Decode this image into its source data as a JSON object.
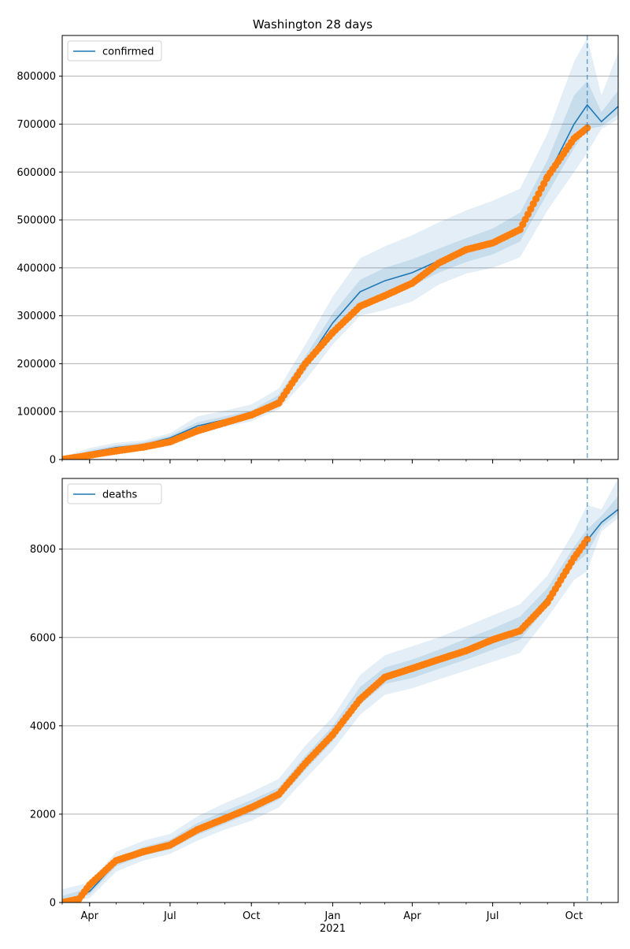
{
  "figure": {
    "title": "Washington 28 days"
  },
  "chart_data": [
    {
      "type": "line",
      "title": "Washington 28 days",
      "xlabel": "",
      "ylabel": "",
      "x_range": [
        "2020-03-01",
        "2021-11-20"
      ],
      "ylim": [
        0,
        885000
      ],
      "yticks": [
        0,
        100000,
        200000,
        300000,
        400000,
        500000,
        600000,
        700000,
        800000
      ],
      "ytick_labels": [
        "0",
        "100000",
        "200000",
        "300000",
        "400000",
        "500000",
        "600000",
        "700000",
        "800000"
      ],
      "grid": "horizontal",
      "legend_position": "top-left",
      "forecast_start": "2021-10-16",
      "series": [
        {
          "name": "confirmed",
          "kind": "fit-line",
          "color": "#1f77b4",
          "x": [
            "2020-03-01",
            "2020-04-01",
            "2020-05-01",
            "2020-06-01",
            "2020-07-01",
            "2020-08-01",
            "2020-09-01",
            "2020-10-01",
            "2020-11-01",
            "2020-12-01",
            "2021-01-01",
            "2021-02-01",
            "2021-03-01",
            "2021-04-01",
            "2021-05-01",
            "2021-06-01",
            "2021-07-01",
            "2021-08-01",
            "2021-09-01",
            "2021-10-01",
            "2021-10-16",
            "2021-11-01",
            "2021-11-20"
          ],
          "y": [
            0,
            15000,
            25000,
            31000,
            45000,
            70000,
            83000,
            95000,
            125000,
            200000,
            285000,
            350000,
            373000,
            390000,
            415000,
            437000,
            455000,
            485000,
            590000,
            700000,
            740000,
            705000,
            737000
          ]
        },
        {
          "name": "",
          "kind": "observed-points",
          "color": "#ff7f0e",
          "x": [
            "2020-03-01",
            "2020-04-01",
            "2020-05-01",
            "2020-06-01",
            "2020-07-01",
            "2020-08-01",
            "2020-09-01",
            "2020-10-01",
            "2020-11-01",
            "2020-12-01",
            "2021-01-01",
            "2021-02-01",
            "2021-03-01",
            "2021-04-01",
            "2021-05-01",
            "2021-06-01",
            "2021-07-01",
            "2021-08-01",
            "2021-09-01",
            "2021-10-01",
            "2021-10-16"
          ],
          "y": [
            0,
            9000,
            18000,
            26000,
            37000,
            60000,
            77000,
            93000,
            118000,
            200000,
            265000,
            320000,
            342000,
            368000,
            410000,
            438000,
            452000,
            480000,
            590000,
            670000,
            692000
          ]
        }
      ],
      "band": {
        "color": "#1f77b4",
        "x": [
          "2020-03-01",
          "2020-04-01",
          "2020-05-01",
          "2020-06-01",
          "2020-07-01",
          "2020-08-01",
          "2020-09-01",
          "2020-10-01",
          "2020-11-01",
          "2020-12-01",
          "2021-01-01",
          "2021-02-01",
          "2021-03-01",
          "2021-04-01",
          "2021-05-01",
          "2021-06-01",
          "2021-07-01",
          "2021-08-01",
          "2021-09-01",
          "2021-10-01",
          "2021-10-16",
          "2021-11-01",
          "2021-11-20"
        ],
        "outer_low": [
          0,
          4000,
          12000,
          20000,
          32000,
          52000,
          68000,
          80000,
          105000,
          165000,
          240000,
          300000,
          312000,
          330000,
          365000,
          388000,
          400000,
          422000,
          520000,
          600000,
          640000,
          690000,
          710000
        ],
        "outer_high": [
          5000,
          24000,
          35000,
          40000,
          55000,
          90000,
          102000,
          115000,
          148000,
          240000,
          340000,
          420000,
          445000,
          468000,
          495000,
          520000,
          540000,
          565000,
          680000,
          830000,
          880000,
          760000,
          850000
        ],
        "inner_low": [
          0,
          10000,
          18000,
          25000,
          40000,
          62000,
          76000,
          88000,
          115000,
          185000,
          265000,
          325000,
          345000,
          362000,
          390000,
          412000,
          428000,
          455000,
          555000,
          650000,
          690000,
          695000,
          720000
        ],
        "inner_high": [
          2000,
          19000,
          30000,
          36000,
          50000,
          78000,
          90000,
          102000,
          135000,
          215000,
          305000,
          375000,
          400000,
          418000,
          440000,
          462000,
          482000,
          515000,
          625000,
          760000,
          790000,
          725000,
          770000
        ]
      }
    },
    {
      "type": "line",
      "title": "",
      "xlabel": "",
      "ylabel": "",
      "x_range": [
        "2020-03-01",
        "2021-11-20"
      ],
      "ylim": [
        0,
        9600
      ],
      "yticks": [
        0,
        2000,
        4000,
        6000,
        8000
      ],
      "ytick_labels": [
        "0",
        "2000",
        "4000",
        "6000",
        "8000"
      ],
      "grid": "horizontal",
      "legend_position": "top-left",
      "forecast_start": "2021-10-16",
      "series": [
        {
          "name": "deaths",
          "kind": "fit-line",
          "color": "#1f77b4",
          "x": [
            "2020-03-01",
            "2020-04-01",
            "2020-05-01",
            "2020-06-01",
            "2020-07-01",
            "2020-08-01",
            "2020-09-01",
            "2020-10-01",
            "2020-11-01",
            "2020-12-01",
            "2021-01-01",
            "2021-02-01",
            "2021-03-01",
            "2021-04-01",
            "2021-05-01",
            "2021-06-01",
            "2021-07-01",
            "2021-08-01",
            "2021-09-01",
            "2021-10-01",
            "2021-10-16",
            "2021-11-01",
            "2021-11-20"
          ],
          "y": [
            0,
            250,
            900,
            1150,
            1300,
            1650,
            1900,
            2150,
            2450,
            3150,
            3800,
            4650,
            5120,
            5280,
            5500,
            5720,
            5950,
            6200,
            6900,
            7800,
            8200,
            8600,
            8900
          ]
        },
        {
          "name": "",
          "kind": "observed-points",
          "color": "#ff7f0e",
          "x": [
            "2020-03-01",
            "2020-03-20",
            "2020-04-01",
            "2020-05-01",
            "2020-06-01",
            "2020-07-01",
            "2020-08-01",
            "2020-09-01",
            "2020-10-01",
            "2020-11-01",
            "2020-12-01",
            "2021-01-01",
            "2021-02-01",
            "2021-03-01",
            "2021-04-01",
            "2021-05-01",
            "2021-06-01",
            "2021-07-01",
            "2021-08-01",
            "2021-09-01",
            "2021-10-01",
            "2021-10-16"
          ],
          "y": [
            0,
            80,
            400,
            950,
            1150,
            1300,
            1650,
            1900,
            2150,
            2450,
            3150,
            3800,
            4600,
            5100,
            5300,
            5500,
            5700,
            5950,
            6150,
            6800,
            7800,
            8220
          ]
        }
      ],
      "band": {
        "color": "#1f77b4",
        "x": [
          "2020-03-01",
          "2020-04-01",
          "2020-05-01",
          "2020-06-01",
          "2020-07-01",
          "2020-08-01",
          "2020-09-01",
          "2020-10-01",
          "2020-11-01",
          "2020-12-01",
          "2021-01-01",
          "2021-02-01",
          "2021-03-01",
          "2021-04-01",
          "2021-05-01",
          "2021-06-01",
          "2021-07-01",
          "2021-08-01",
          "2021-09-01",
          "2021-10-01",
          "2021-10-16",
          "2021-11-01",
          "2021-11-20"
        ],
        "outer_low": [
          0,
          100,
          700,
          950,
          1100,
          1400,
          1650,
          1850,
          2150,
          2800,
          3450,
          4250,
          4700,
          4850,
          5050,
          5250,
          5450,
          5650,
          6450,
          7300,
          7500,
          8400,
          8700
        ],
        "outer_high": [
          300,
          450,
          1150,
          1400,
          1550,
          1950,
          2250,
          2500,
          2800,
          3550,
          4200,
          5150,
          5600,
          5800,
          6000,
          6250,
          6500,
          6750,
          7400,
          8400,
          9000,
          8900,
          9600
        ],
        "inner_low": [
          0,
          180,
          820,
          1070,
          1200,
          1530,
          1780,
          2030,
          2330,
          3000,
          3650,
          4480,
          4950,
          5080,
          5290,
          5500,
          5720,
          5950,
          6700,
          7650,
          7900,
          8500,
          8800
        ],
        "inner_high": [
          150,
          330,
          1000,
          1260,
          1420,
          1800,
          2070,
          2320,
          2600,
          3320,
          3990,
          4880,
          5320,
          5500,
          5720,
          5970,
          6200,
          6470,
          7120,
          8050,
          8450,
          8750,
          9200
        ]
      }
    }
  ],
  "xaxis": {
    "ticks": [
      {
        "date": "2020-04-01",
        "label": "Apr",
        "year": ""
      },
      {
        "date": "2020-07-01",
        "label": "Jul",
        "year": ""
      },
      {
        "date": "2020-10-01",
        "label": "Oct",
        "year": ""
      },
      {
        "date": "2021-01-01",
        "label": "Jan",
        "year": "2021"
      },
      {
        "date": "2021-04-01",
        "label": "Apr",
        "year": ""
      },
      {
        "date": "2021-07-01",
        "label": "Jul",
        "year": ""
      },
      {
        "date": "2021-10-01",
        "label": "Oct",
        "year": ""
      }
    ]
  }
}
